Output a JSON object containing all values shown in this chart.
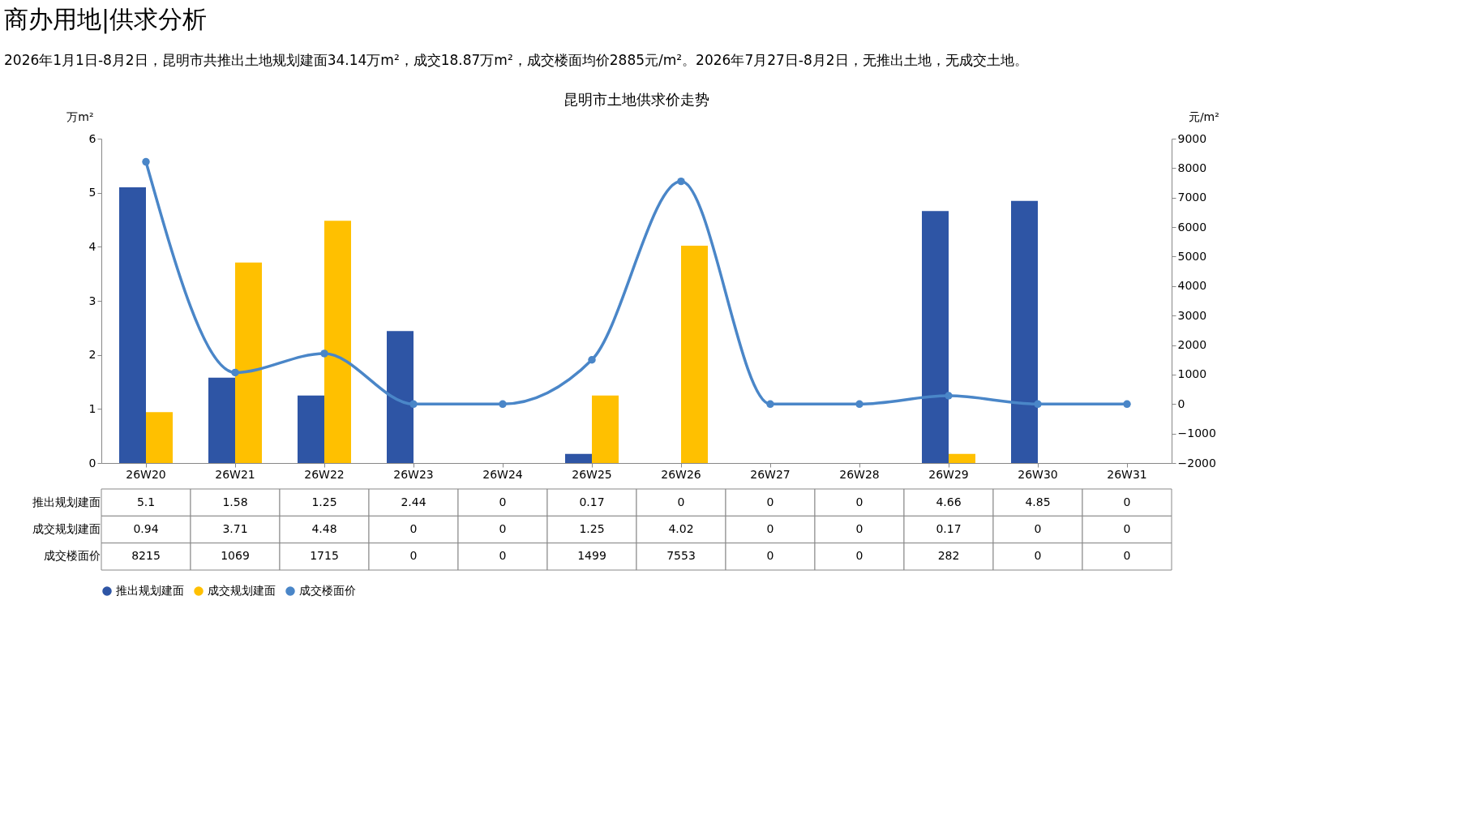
{
  "chart_data": {
    "type": "bar",
    "title": "昆明市土地供求价走势",
    "annotations": [
      "商办用地|供求分析",
      "2026年1月1日-8月2日，昆明市共推出土地规划建面34.14万m²，成交18.87万m²，成交楼面均价2885元/m²。2026年7月27日-8月2日，无推出土地，无成交土地。"
    ],
    "categories": [
      "26W20",
      "26W21",
      "26W22",
      "26W23",
      "26W24",
      "26W25",
      "26W26",
      "26W27",
      "26W28",
      "26W29",
      "26W30",
      "26W31"
    ],
    "ylabel": "万m²",
    "y2label": "元/m²",
    "ylim": [
      0,
      6
    ],
    "yticks": [
      0,
      1,
      2,
      3,
      4,
      5,
      6
    ],
    "y2lim": [
      -2000,
      9000
    ],
    "y2ticks": [
      -2000,
      -1000,
      0,
      1000,
      2000,
      3000,
      4000,
      5000,
      6000,
      7000,
      8000,
      9000
    ],
    "series": [
      {
        "name": "推出规划建面",
        "color": "#2e55a5",
        "values": [
          5.1,
          1.58,
          1.25,
          2.44,
          0,
          0.17,
          0,
          0,
          0,
          4.66,
          4.85,
          0
        ]
      },
      {
        "name": "成交规划建面",
        "color": "#ffc000",
        "values": [
          0.94,
          3.71,
          4.48,
          0,
          0,
          1.25,
          4.02,
          0,
          0,
          0.17,
          0,
          0
        ]
      },
      {
        "name": "成交楼面价",
        "type": "line",
        "axis": "y2",
        "color": "#4a86c8",
        "values": [
          8215,
          1069,
          1715,
          0,
          0,
          1499,
          7553,
          0,
          0,
          282,
          0,
          0
        ]
      }
    ],
    "data_labels": true,
    "legend": "bottom",
    "grid": false,
    "marker": "circle"
  }
}
